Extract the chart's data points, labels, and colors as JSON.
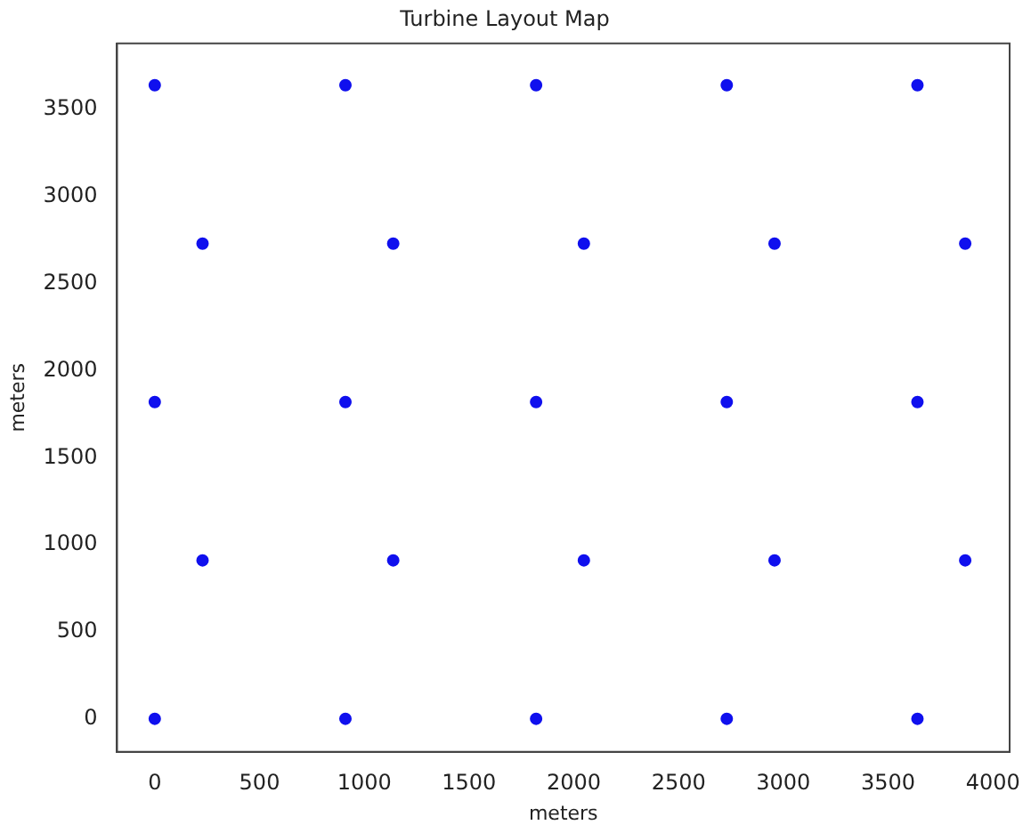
{
  "chart_data": {
    "type": "scatter",
    "title": "Turbine Layout Map",
    "xlabel": "meters",
    "ylabel": "meters",
    "x": [
      0,
      910,
      1820,
      2730,
      3640,
      228,
      1138,
      2048,
      2958,
      3868,
      0,
      910,
      1820,
      2730,
      3640,
      228,
      1138,
      2048,
      2958,
      3868,
      0,
      910,
      1820,
      2730,
      3640
    ],
    "values": [
      0,
      0,
      0,
      0,
      0,
      910,
      910,
      910,
      910,
      910,
      1820,
      1820,
      1820,
      1820,
      1820,
      2730,
      2730,
      2730,
      2730,
      2730,
      3640,
      3640,
      3640,
      3640,
      3640
    ],
    "color": "#1010ee",
    "marker": "circle",
    "grid": false,
    "legend": false,
    "xlim": [
      -180,
      4080
    ],
    "xticks": [
      0,
      500,
      1000,
      1500,
      2000,
      2500,
      3000,
      3500,
      4000
    ],
    "ylim": [
      -190,
      3880
    ],
    "yticks": [
      0,
      500,
      1000,
      1500,
      2000,
      2500,
      3000,
      3500
    ]
  }
}
